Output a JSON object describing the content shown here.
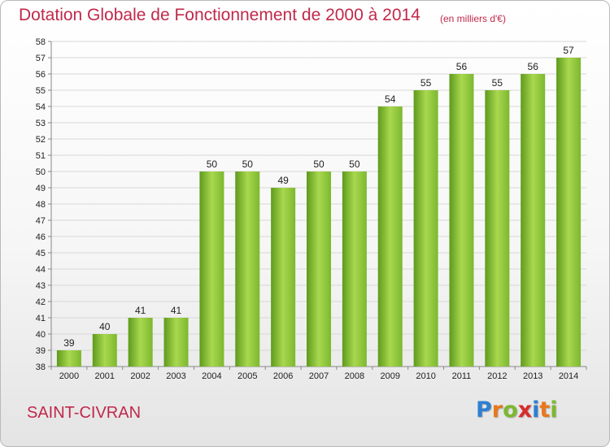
{
  "chart_data": {
    "type": "bar",
    "title": "Dotation Globale de Fonctionnement de 2000 à 2014",
    "subtitle": "(en milliers d'€)",
    "categories": [
      "2000",
      "2001",
      "2002",
      "2003",
      "2004",
      "2005",
      "2006",
      "2007",
      "2008",
      "2009",
      "2010",
      "2011",
      "2012",
      "2013",
      "2014"
    ],
    "values": [
      39,
      40,
      41,
      41,
      50,
      50,
      49,
      50,
      50,
      54,
      55,
      56,
      55,
      56,
      57
    ],
    "xlabel": "",
    "ylabel": "",
    "ylim": [
      38,
      58
    ],
    "yticks": [
      38,
      39,
      40,
      41,
      42,
      43,
      44,
      45,
      46,
      47,
      48,
      49,
      50,
      51,
      52,
      53,
      54,
      55,
      56,
      57,
      58
    ],
    "grid": true,
    "bar_color": "#7cb82f",
    "bar_color_light": "#a9d84f",
    "bar_color_dark": "#5e9a1c"
  },
  "footer": {
    "commune": "SAINT-CIVRAN",
    "logo_letters": [
      {
        "ch": "P",
        "color": "#2e7fd1"
      },
      {
        "ch": "r",
        "color": "#e8771e"
      },
      {
        "ch": "o",
        "color": "#7cb82f"
      },
      {
        "ch": "x",
        "color": "#d92b2b"
      },
      {
        "ch": "i",
        "color": "#2e7fd1"
      },
      {
        "ch": "t",
        "color": "#e8771e"
      },
      {
        "ch": "i",
        "color": "#7cb82f"
      }
    ]
  },
  "colors": {
    "title": "#c0294a",
    "axis": "#888888",
    "grid": "#d8d8d8"
  }
}
